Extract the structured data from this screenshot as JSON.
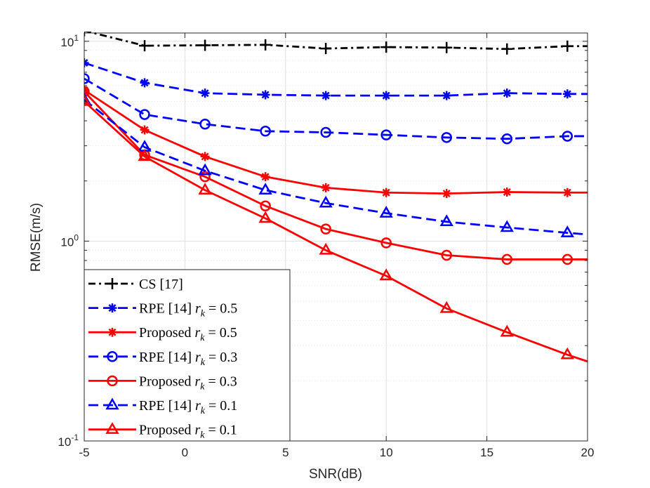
{
  "chart_data": {
    "type": "line",
    "title": "",
    "xlabel": "SNR(dB)",
    "ylabel": "RMSE(m/s)",
    "xscale": "linear",
    "yscale": "log",
    "xlim": [
      -5,
      20
    ],
    "ylim": [
      0.1,
      11
    ],
    "grid": true,
    "legend_position": "bottom-left",
    "x_ticks": [
      -5,
      0,
      5,
      10,
      15,
      20
    ],
    "x_tick_labels": [
      "-5",
      "0",
      "5",
      "10",
      "15",
      "20"
    ],
    "y_ticks": [
      0.1,
      1,
      10
    ],
    "y_tick_labels": [
      {
        "base": "10",
        "exp": "-1"
      },
      {
        "base": "10",
        "exp": "0"
      },
      {
        "base": "10",
        "exp": "1"
      }
    ],
    "series": [
      {
        "name": "CS [17]",
        "label_prefix": "CS [17]",
        "label_math": "",
        "color": "#000000",
        "dash": "dashdot",
        "marker": "plus",
        "x": [
          -5,
          -2,
          1,
          4,
          7,
          10,
          13,
          16,
          19,
          20
        ],
        "y": [
          11.3,
          9.5,
          9.55,
          9.6,
          9.2,
          9.35,
          9.3,
          9.15,
          9.45,
          9.45
        ]
      },
      {
        "name": "RPE [14] r_k = 0.5",
        "label_prefix": "RPE [14] ",
        "label_math": "r",
        "label_sub": "k",
        "label_value": " = 0.5",
        "color": "#0000ff",
        "dash": "dashed",
        "marker": "asterisk",
        "x": [
          -5,
          -2,
          1,
          4,
          7,
          10,
          13,
          16,
          19,
          20
        ],
        "y": [
          7.8,
          6.2,
          5.5,
          5.4,
          5.35,
          5.35,
          5.35,
          5.5,
          5.45,
          5.45
        ]
      },
      {
        "name": "Proposed r_k = 0.5",
        "label_prefix": "Proposed ",
        "label_math": "r",
        "label_sub": "k",
        "label_value": " = 0.5",
        "color": "#ff0000",
        "dash": "solid",
        "marker": "asterisk",
        "x": [
          -5,
          -2,
          1,
          4,
          7,
          10,
          13,
          16,
          19,
          20
        ],
        "y": [
          5.7,
          3.6,
          2.65,
          2.1,
          1.85,
          1.75,
          1.73,
          1.76,
          1.75,
          1.75
        ]
      },
      {
        "name": "RPE [14] r_k = 0.3",
        "label_prefix": "RPE [14] ",
        "label_math": "r",
        "label_sub": "k",
        "label_value": " = 0.3",
        "color": "#0000ff",
        "dash": "dashed",
        "marker": "circle",
        "x": [
          -5,
          -2,
          1,
          4,
          7,
          10,
          13,
          16,
          19,
          20
        ],
        "y": [
          6.5,
          4.3,
          3.85,
          3.55,
          3.5,
          3.4,
          3.3,
          3.25,
          3.35,
          3.35
        ]
      },
      {
        "name": "Proposed r_k = 0.3",
        "label_prefix": "Proposed ",
        "label_math": "r",
        "label_sub": "k",
        "label_value": " = 0.3",
        "color": "#ff0000",
        "dash": "solid",
        "marker": "circle",
        "x": [
          -5,
          -2,
          1,
          4,
          7,
          10,
          13,
          16,
          19,
          20
        ],
        "y": [
          5.6,
          2.7,
          2.1,
          1.5,
          1.15,
          0.98,
          0.85,
          0.81,
          0.81,
          0.81
        ]
      },
      {
        "name": "RPE [14] r_k = 0.1",
        "label_prefix": "RPE [14] ",
        "label_math": "r",
        "label_sub": "k",
        "label_value": " = 0.1",
        "color": "#0000ff",
        "dash": "dashed",
        "marker": "triangle",
        "x": [
          -5,
          -2,
          1,
          4,
          7,
          10,
          13,
          16,
          19,
          20
        ],
        "y": [
          5.1,
          2.95,
          2.25,
          1.8,
          1.55,
          1.38,
          1.25,
          1.17,
          1.1,
          1.08
        ]
      },
      {
        "name": "Proposed r_k = 0.1",
        "label_prefix": "Proposed ",
        "label_math": "r",
        "label_sub": "k",
        "label_value": " = 0.1",
        "color": "#ff0000",
        "dash": "solid",
        "marker": "triangle",
        "x": [
          -5,
          -2,
          1,
          4,
          7,
          10,
          13,
          16,
          19,
          20
        ],
        "y": [
          5.0,
          2.65,
          1.8,
          1.3,
          0.9,
          0.67,
          0.46,
          0.35,
          0.27,
          0.25
        ]
      }
    ]
  }
}
